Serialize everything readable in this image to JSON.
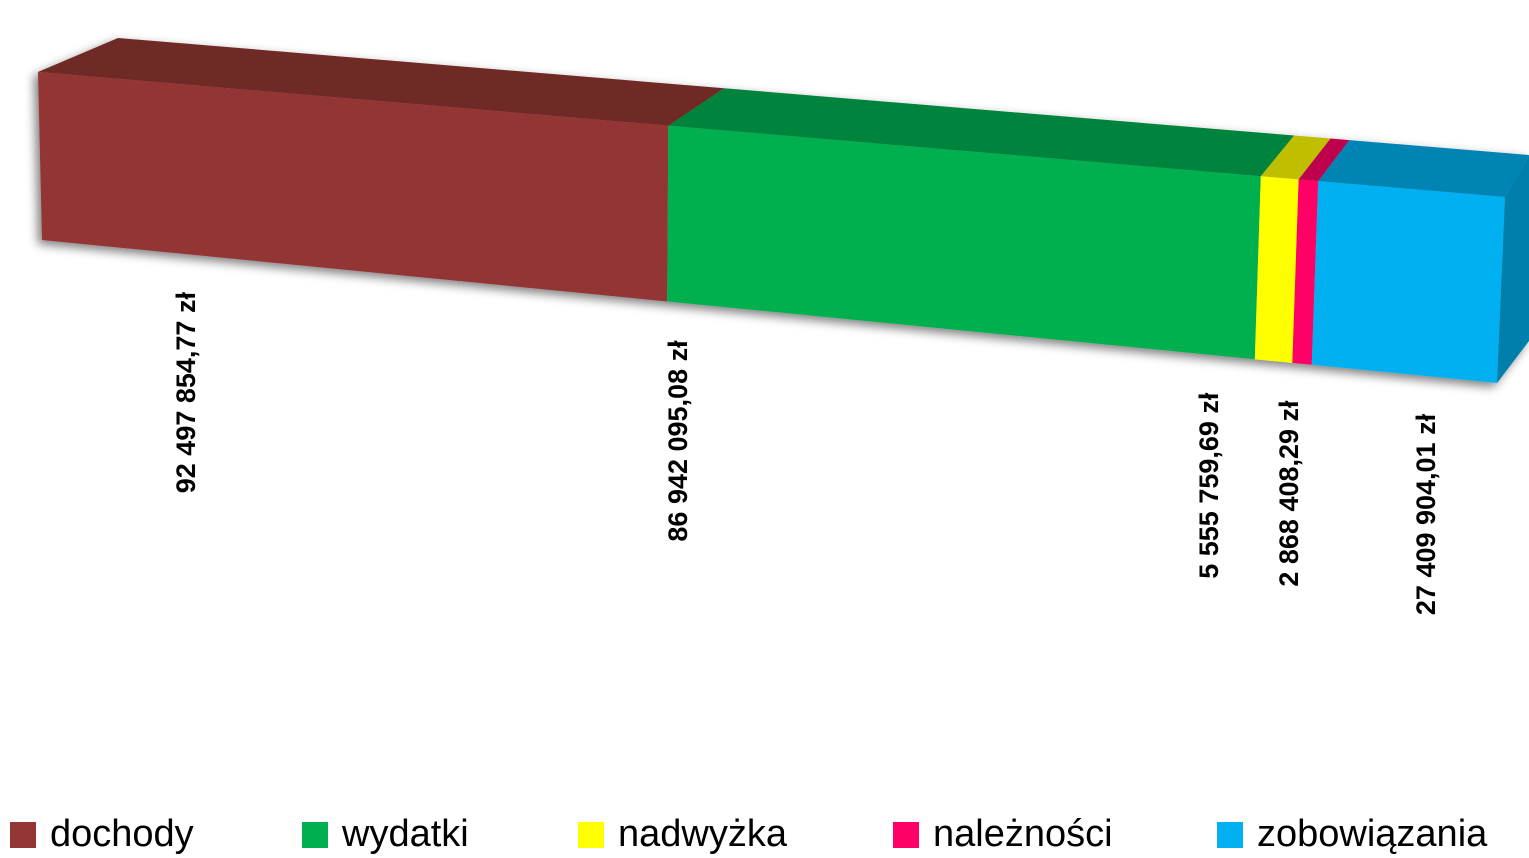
{
  "chart_data": {
    "type": "bar",
    "orientation": "horizontal",
    "stacked": true,
    "series": [
      {
        "name": "dochody",
        "color": "#943634",
        "values": [
          92497854.77
        ],
        "value_labels": [
          "92 497 854,77 zł"
        ]
      },
      {
        "name": "wydatki",
        "color": "#00b050",
        "values": [
          86942095.08
        ],
        "value_labels": [
          "86 942 095,08 zł"
        ]
      },
      {
        "name": "nadwyżka",
        "color": "#ffff00",
        "values": [
          5555759.69
        ],
        "value_labels": [
          "5 555 759,69 zł"
        ]
      },
      {
        "name": "należności",
        "color": "#ff0066",
        "values": [
          2868408.29
        ],
        "value_labels": [
          "2 868 408,29 zł"
        ]
      },
      {
        "name": "zobowiązania",
        "color": "#00b0f0",
        "values": [
          27409904.01
        ],
        "value_labels": [
          "27 409 904,01 zł"
        ]
      }
    ],
    "legend": "bottom"
  }
}
